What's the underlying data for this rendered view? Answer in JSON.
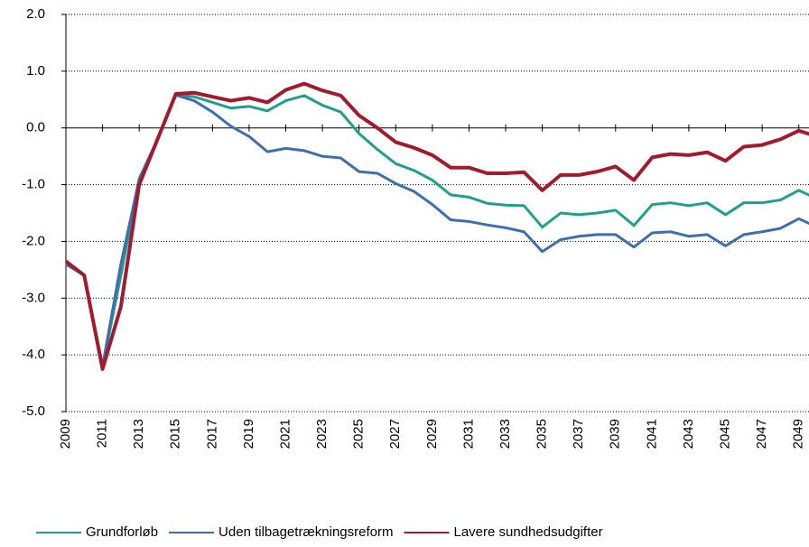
{
  "chart_data": {
    "type": "line",
    "x": [
      2009,
      2010,
      2011,
      2012,
      2013,
      2014,
      2015,
      2016,
      2017,
      2018,
      2019,
      2020,
      2021,
      2022,
      2023,
      2024,
      2025,
      2026,
      2027,
      2028,
      2029,
      2030,
      2031,
      2032,
      2033,
      2034,
      2035,
      2036,
      2037,
      2038,
      2039,
      2040,
      2041,
      2042,
      2043,
      2044,
      2045,
      2046,
      2047,
      2048,
      2049,
      2050
    ],
    "series": [
      {
        "name": "Grundforløb",
        "color": "#1fa08c",
        "values": [
          -2.4,
          -2.6,
          -4.2,
          -2.6,
          -0.9,
          -0.2,
          0.58,
          0.55,
          0.45,
          0.35,
          0.38,
          0.3,
          0.48,
          0.57,
          0.4,
          0.28,
          -0.1,
          -0.38,
          -0.63,
          -0.75,
          -0.92,
          -1.18,
          -1.22,
          -1.33,
          -1.36,
          -1.37,
          -1.75,
          -1.5,
          -1.53,
          -1.5,
          -1.45,
          -1.72,
          -1.35,
          -1.32,
          -1.37,
          -1.32,
          -1.53,
          -1.32,
          -1.32,
          -1.27,
          -1.1,
          -1.25
        ]
      },
      {
        "name": "Uden tilbagetrækningsreform",
        "color": "#3d6fb0",
        "values": [
          -2.4,
          -2.6,
          -4.2,
          -2.4,
          -0.9,
          -0.2,
          0.58,
          0.48,
          0.28,
          0.03,
          -0.15,
          -0.42,
          -0.36,
          -0.4,
          -0.5,
          -0.53,
          -0.77,
          -0.8,
          -0.98,
          -1.12,
          -1.35,
          -1.62,
          -1.65,
          -1.71,
          -1.76,
          -1.83,
          -2.18,
          -1.97,
          -1.91,
          -1.88,
          -1.88,
          -2.1,
          -1.85,
          -1.83,
          -1.91,
          -1.88,
          -2.08,
          -1.88,
          -1.83,
          -1.77,
          -1.6,
          -1.75
        ]
      },
      {
        "name": "Lavere sundhedsudgifter",
        "color": "#a31a2e",
        "values": [
          -2.35,
          -2.6,
          -4.25,
          -3.15,
          -1.0,
          -0.2,
          0.6,
          0.62,
          0.55,
          0.48,
          0.53,
          0.45,
          0.67,
          0.78,
          0.66,
          0.57,
          0.22,
          0.0,
          -0.25,
          -0.35,
          -0.48,
          -0.7,
          -0.7,
          -0.8,
          -0.8,
          -0.78,
          -1.1,
          -0.83,
          -0.83,
          -0.77,
          -0.68,
          -0.92,
          -0.52,
          -0.46,
          -0.48,
          -0.43,
          -0.58,
          -0.33,
          -0.3,
          -0.2,
          -0.05,
          -0.15
        ]
      }
    ],
    "xlim": [
      2009,
      2050
    ],
    "xticks": [
      2009,
      2011,
      2013,
      2015,
      2017,
      2019,
      2021,
      2023,
      2025,
      2027,
      2029,
      2031,
      2033,
      2035,
      2037,
      2039,
      2041,
      2043,
      2045,
      2047,
      2049
    ],
    "ylim": [
      -5,
      2
    ],
    "yticks": [
      {
        "value": 2,
        "label": "2.0"
      },
      {
        "value": 1,
        "label": "1.0"
      },
      {
        "value": 0,
        "label": "0.0"
      },
      {
        "value": -1,
        "label": "-1.0"
      },
      {
        "value": -2,
        "label": "-2.0"
      },
      {
        "value": -3,
        "label": "-3.0"
      },
      {
        "value": -4,
        "label": "-4.0"
      },
      {
        "value": -5,
        "label": "-5.0"
      }
    ],
    "grid": true,
    "legend": "bottom"
  }
}
